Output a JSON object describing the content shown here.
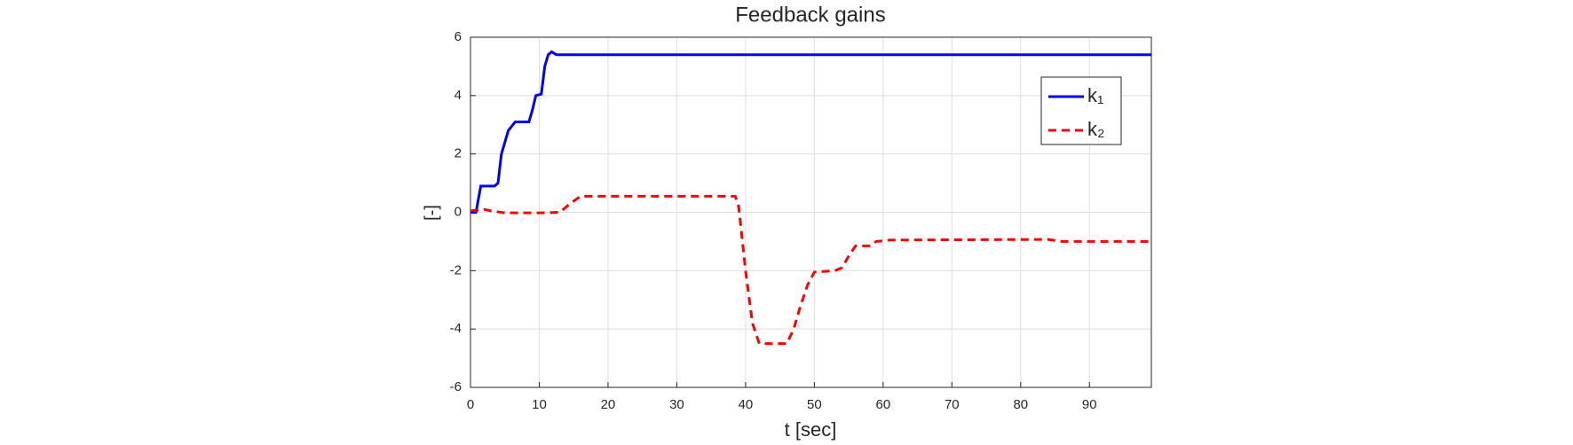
{
  "chart_data": {
    "type": "line",
    "title": "Feedback gains",
    "xlabel": "t [sec]",
    "ylabel": "[-]",
    "xlim": [
      0,
      99
    ],
    "xticks": [
      0,
      10,
      20,
      30,
      40,
      50,
      60,
      70,
      80,
      90
    ],
    "ylim": [
      -6,
      6
    ],
    "yticks": [
      -6,
      -4,
      -2,
      0,
      2,
      4,
      6
    ],
    "grid": true,
    "legend": "northeast",
    "series": [
      {
        "name": "k₁",
        "color": "#0000ff",
        "dash": "solid",
        "x": [
          0,
          0.8,
          1.5,
          3.5,
          4,
          4.5,
          5.5,
          6.5,
          8.5,
          9,
          9.5,
          10.3,
          10.8,
          11.3,
          11.8,
          12.5,
          99
        ],
        "values": [
          0,
          0,
          0.9,
          0.9,
          1.0,
          2.0,
          2.8,
          3.1,
          3.1,
          3.5,
          4.0,
          4.05,
          5.0,
          5.4,
          5.5,
          5.4,
          5.4
        ]
      },
      {
        "name": "k₂",
        "color": "#ff0000",
        "dash": "dashed",
        "x": [
          0,
          2,
          3,
          5,
          10,
          13,
          14.5,
          16,
          38.5,
          39,
          40,
          41,
          42,
          46,
          47,
          48,
          49,
          50,
          53,
          54,
          55,
          56,
          58,
          59,
          61,
          84,
          86,
          99
        ],
        "values": [
          0.05,
          0.1,
          0.05,
          -0.02,
          -0.02,
          0,
          0.3,
          0.55,
          0.55,
          0.2,
          -2,
          -3.8,
          -4.5,
          -4.5,
          -4,
          -3.2,
          -2.5,
          -2.05,
          -2.0,
          -1.9,
          -1.5,
          -1.15,
          -1.15,
          -1.0,
          -0.95,
          -0.93,
          -1.0,
          -1.0
        ]
      }
    ]
  }
}
